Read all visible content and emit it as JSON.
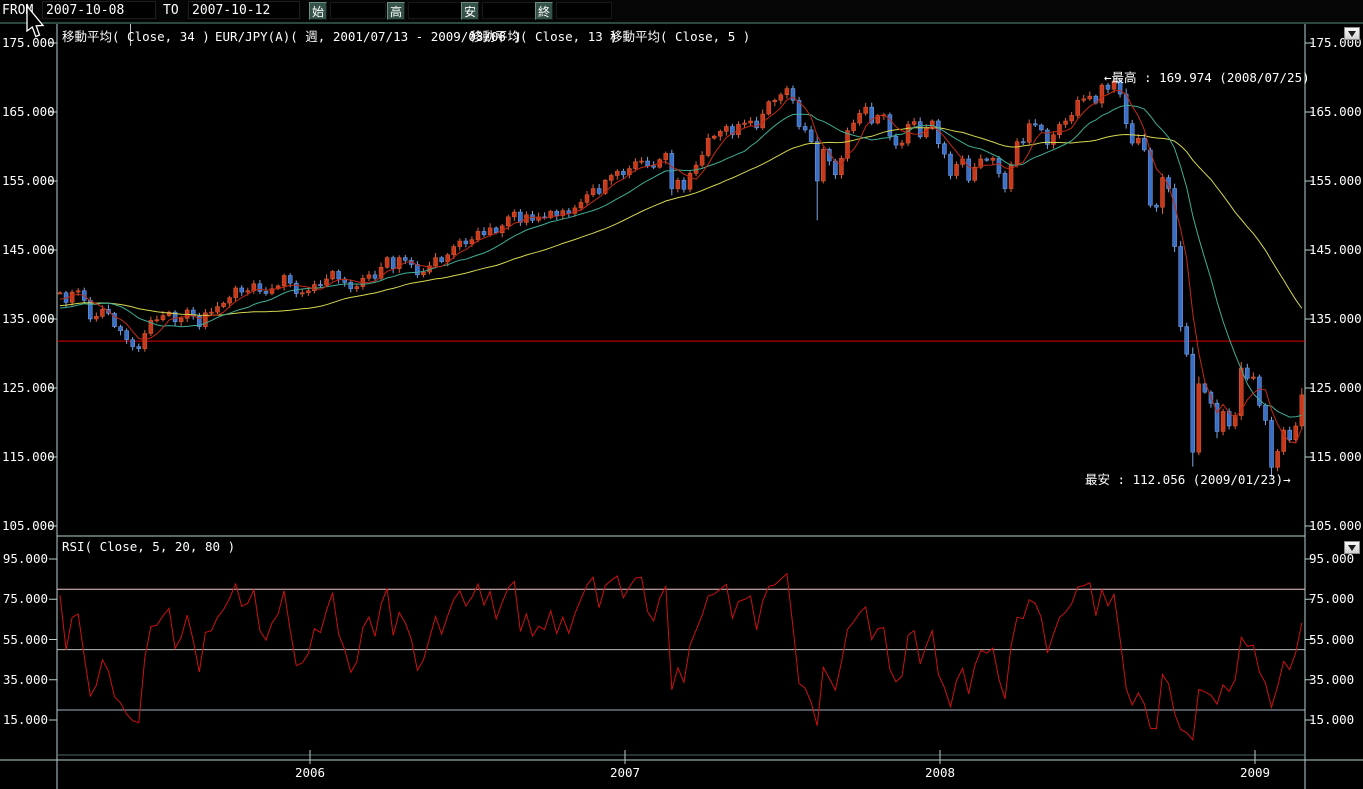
{
  "topbar": {
    "from_label": "FROM",
    "from_value": "2007-10-08",
    "to_label": "TO",
    "to_value": "2007-10-12",
    "open_label": "始",
    "high_label": "高",
    "low_label": "安",
    "close_label": "終",
    "open_value": "",
    "high_value": "",
    "low_value": "",
    "close_value": ""
  },
  "main_chart": {
    "indicators": [
      "移動平均( Close, 34 )",
      "EUR/JPY(A)( 週, 2001/07/13 - 2009/03/06 )",
      "移動平均( Close, 13 )",
      "移動平均( Close, 5 )"
    ],
    "y_ticks": [
      "175.000",
      "165.000",
      "155.000",
      "145.000",
      "135.000",
      "125.000",
      "115.000",
      "105.000"
    ],
    "high_annotation": "←最高 : 169.974 (2008/07/25)",
    "low_annotation": "最安 : 112.056 (2009/01/23)→"
  },
  "rsi_panel": {
    "title": "RSI( Close, 5, 20, 80 )",
    "y_ticks": [
      "95.000",
      "75.000",
      "55.000",
      "35.000",
      "15.000"
    ]
  },
  "x_axis": {
    "years": [
      "2006",
      "2007",
      "2008",
      "2009"
    ]
  },
  "chart_data": {
    "type": "candlestick",
    "symbol": "EUR/JPY(A)",
    "timeframe": "weekly",
    "price_axis_range": [
      105,
      175
    ],
    "rsi_axis_range": [
      15,
      95
    ],
    "ma_periods": [
      34,
      13,
      5
    ],
    "rsi": {
      "period": 5,
      "lower_level": 20,
      "upper_level": 80,
      "mid_level": 50
    },
    "hline_price": 131.8,
    "high_point": {
      "price": 169.974,
      "date": "2008/07/25",
      "week": 174
    },
    "low_point": {
      "price": 112.056,
      "date": "2009/01/23",
      "week": 200
    },
    "wick_overrides": {
      "13": {
        "low": 130.2
      },
      "125": {
        "low": 149.3
      },
      "174": {
        "high": 169.974
      },
      "187": {
        "low": 113.6
      },
      "200": {
        "low": 112.056
      }
    },
    "pre_closes": [
      134.3,
      134.9,
      135.2,
      134.4,
      135.0,
      135.6,
      136.3,
      135.7,
      136.5,
      137.2,
      136.6,
      137.4,
      138.2,
      139.0,
      138.3,
      139.2,
      139.9,
      139.3,
      138.4,
      137.6,
      138.3,
      137.3,
      136.5,
      137.1,
      136.2,
      135.4,
      136.1,
      135.2,
      134.6,
      135.5,
      136.4,
      137.2,
      138.0,
      138.8
    ],
    "closes": [
      138.8,
      137.4,
      138.9,
      139.1,
      137.7,
      135.0,
      135.4,
      136.4,
      135.8,
      133.9,
      133.3,
      132.0,
      131.0,
      130.7,
      132.9,
      134.8,
      134.9,
      135.5,
      136.0,
      134.6,
      135.1,
      136.3,
      135.4,
      133.9,
      135.9,
      136.0,
      136.8,
      137.3,
      138.1,
      139.5,
      138.9,
      139.1,
      140.1,
      139.0,
      138.7,
      139.4,
      139.8,
      141.3,
      140.2,
      138.7,
      138.8,
      139.1,
      140.0,
      139.9,
      140.8,
      141.9,
      140.8,
      140.3,
      139.4,
      139.7,
      140.9,
      141.4,
      140.9,
      142.5,
      143.9,
      142.3,
      143.9,
      143.5,
      142.9,
      141.4,
      141.8,
      142.7,
      143.9,
      143.3,
      144.3,
      145.5,
      146.3,
      145.9,
      146.5,
      147.7,
      147.2,
      148.2,
      147.5,
      148.5,
      149.8,
      150.5,
      149.0,
      150.1,
      149.3,
      149.8,
      149.7,
      150.6,
      150.0,
      150.7,
      150.3,
      151.1,
      151.9,
      153.0,
      153.9,
      153.2,
      155.1,
      155.8,
      156.4,
      155.9,
      156.8,
      157.8,
      157.9,
      157.2,
      157.0,
      158.1,
      159.0,
      153.9,
      155.1,
      153.8,
      156.1,
      157.3,
      158.7,
      161.2,
      161.5,
      162.2,
      162.9,
      161.7,
      163.2,
      163.4,
      163.7,
      162.7,
      164.7,
      166.5,
      166.7,
      167.5,
      168.4,
      166.7,
      162.9,
      162.4,
      160.7,
      155.0,
      159.6,
      157.9,
      155.9,
      158.3,
      162.3,
      163.4,
      164.8,
      165.7,
      163.4,
      164.5,
      164.6,
      161.5,
      160.2,
      160.5,
      163.2,
      163.6,
      161.4,
      162.6,
      163.7,
      160.4,
      158.9,
      155.8,
      157.4,
      158.2,
      155.1,
      157.0,
      158.2,
      158.0,
      158.3,
      156.1,
      153.9,
      157.4,
      160.7,
      160.6,
      163.3,
      163.1,
      162.4,
      160.3,
      161.7,
      163.2,
      163.7,
      164.5,
      166.7,
      166.9,
      167.3,
      166.3,
      168.9,
      168.3,
      169.5,
      167.6,
      163.3,
      160.5,
      161.2,
      159.5,
      151.5,
      151.2,
      155.5,
      153.9,
      145.5,
      133.9,
      129.9,
      115.7,
      125.6,
      124.4,
      122.8,
      118.7,
      121.6,
      119.5,
      121.0,
      127.9,
      126.4,
      126.6,
      122.5,
      120.3,
      113.5,
      115.8,
      118.9,
      117.5,
      119.5,
      124.0
    ],
    "colors": {
      "background": "#000000",
      "axis": "#b9cfcf",
      "candle_up": "#c8381b",
      "candle_up_wick": "#e0603a",
      "candle_down": "#3a6fc8",
      "candle_down_wick": "#7aa6e6",
      "ma34": "#d6d64f",
      "ma13": "#3fae96",
      "ma5": "#c22a14",
      "rsi_line": "#cc1111",
      "hline": "#dd0000",
      "rsi_level_80": "#eec6c6",
      "rsi_level_50": "#bcbcbc",
      "rsi_level_20": "#9fb2c4",
      "text": "#ffffff"
    }
  }
}
